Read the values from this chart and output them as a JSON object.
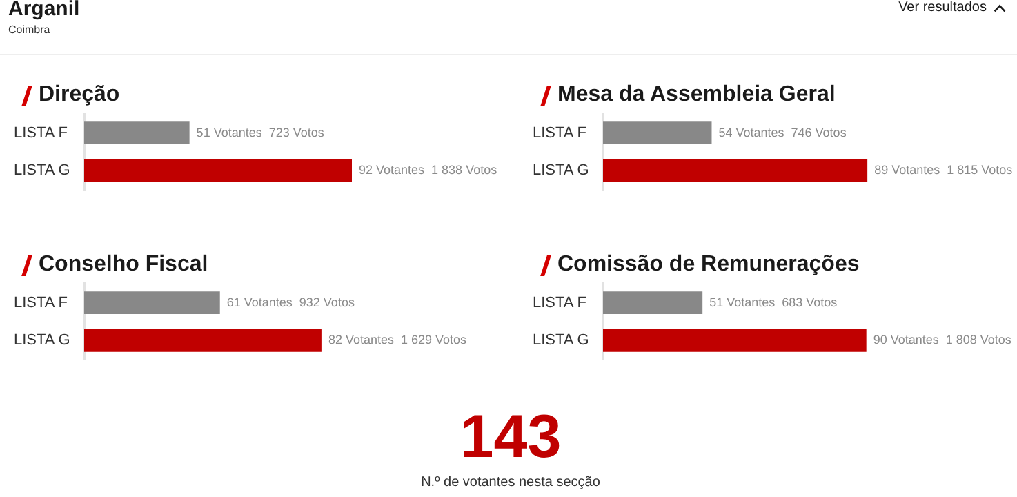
{
  "chart_data": [
    {
      "type": "other",
      "title": "Arganil",
      "subtitle": "Coimbra",
      "annotations": [
        "Ver resultados"
      ]
    },
    {
      "type": "bar",
      "orientation": "horizontal",
      "title": "Direção",
      "categories": [
        "LISTA F",
        "LISTA G"
      ],
      "values": [
        723,
        1838
      ],
      "colors": [
        "#888888",
        "#c00000"
      ],
      "value_labels": [
        "51 Votantes  723 Votos",
        "92 Votantes  1 838 Votos"
      ]
    },
    {
      "type": "bar",
      "orientation": "horizontal",
      "title": "Mesa da Assembleia Geral",
      "categories": [
        "LISTA F",
        "LISTA G"
      ],
      "values": [
        746,
        1815
      ],
      "colors": [
        "#888888",
        "#c00000"
      ],
      "value_labels": [
        "54 Votantes  746 Votos",
        "89 Votantes  1 815 Votos"
      ]
    },
    {
      "type": "bar",
      "orientation": "horizontal",
      "title": "Conselho Fiscal",
      "categories": [
        "LISTA F",
        "LISTA G"
      ],
      "values": [
        932,
        1629
      ],
      "colors": [
        "#888888",
        "#c00000"
      ],
      "value_labels": [
        "61 Votantes  932 Votos",
        "82 Votantes  1 629 Votos"
      ]
    },
    {
      "type": "bar",
      "orientation": "horizontal",
      "title": "Comissão de Remunerações",
      "categories": [
        "LISTA F",
        "LISTA G"
      ],
      "values": [
        683,
        1808
      ],
      "colors": [
        "#888888",
        "#c00000"
      ],
      "value_labels": [
        "51 Votantes  683 Votos",
        "90 Votantes  1 808 Votos"
      ]
    },
    {
      "type": "other",
      "annotations": [
        "143",
        "N.º de votantes nesta secção"
      ]
    }
  ]
}
